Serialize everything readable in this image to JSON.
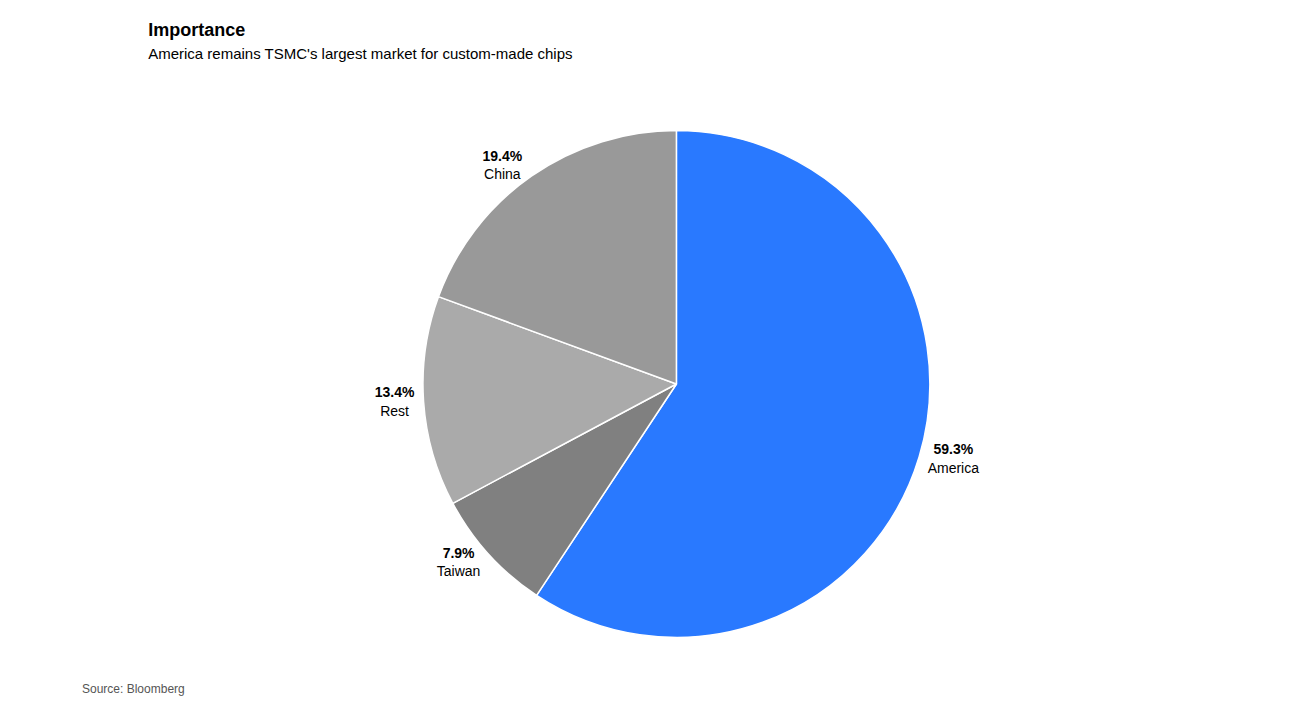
{
  "chart_data": {
    "type": "pie",
    "title": "Importance",
    "subtitle": "America remains TSMC's largest market for custom-made chips",
    "source": "Source: Bloomberg",
    "categories": [
      "America",
      "Taiwan",
      "Rest",
      "China"
    ],
    "values": [
      59.3,
      7.9,
      13.4,
      19.4
    ],
    "value_labels": [
      "59.3%",
      "7.9%",
      "13.4%",
      "19.4%"
    ],
    "colors": [
      "#2979FF",
      "#808080",
      "#AAAAAA",
      "#999999"
    ],
    "data_labels": true
  }
}
